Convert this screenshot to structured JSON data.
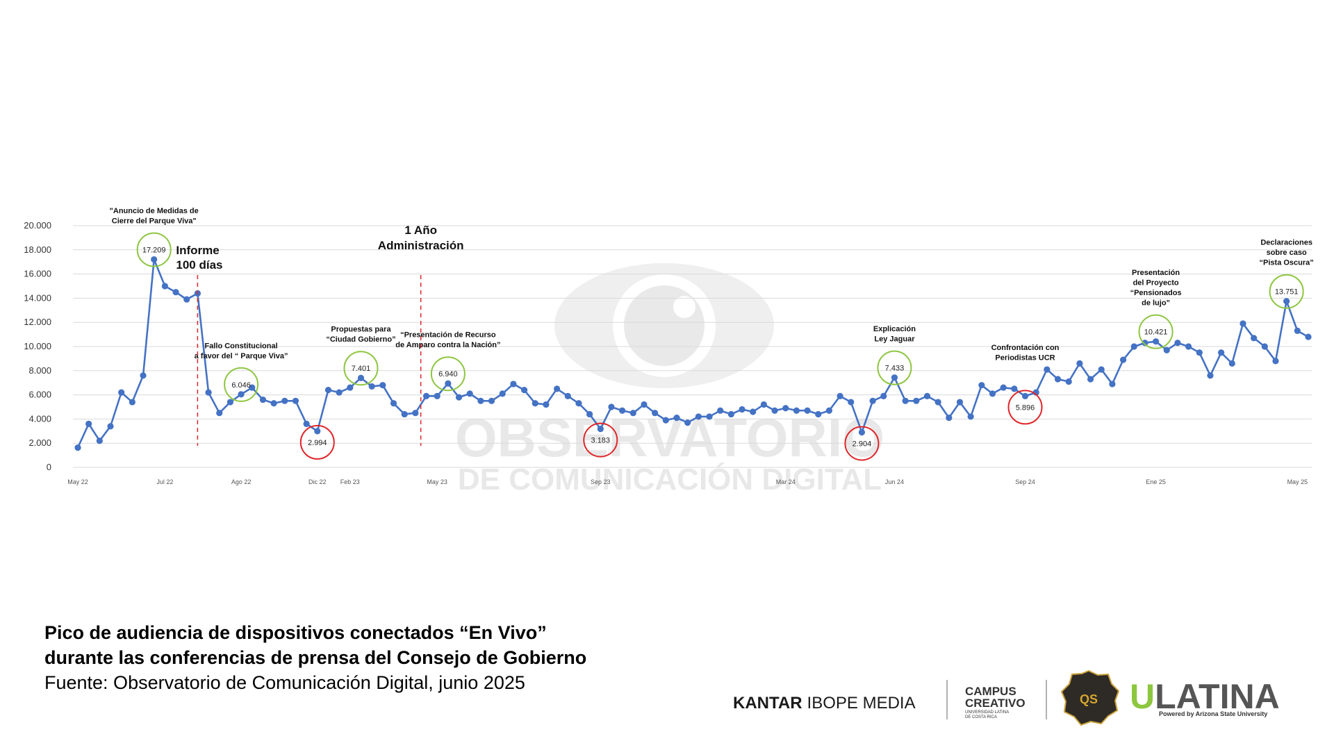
{
  "chart_data": {
    "type": "line",
    "color": "#4472c4",
    "grid": true,
    "ylim": [
      0,
      20000
    ],
    "yticks": [
      0,
      {
        "value": 2000,
        "label": "2.000"
      },
      {
        "value": 4000,
        "label": "4.000"
      },
      {
        "value": 6000,
        "label": "6.000"
      },
      {
        "value": 8000,
        "label": "8.000"
      },
      {
        "value": 10000,
        "label": "10.000"
      },
      {
        "value": 12000,
        "label": "12.000"
      },
      {
        "value": 14000,
        "label": "14.000"
      },
      {
        "value": 16000,
        "label": "16.000"
      },
      {
        "value": 18000,
        "label": "18.000"
      },
      {
        "value": 20000,
        "label": "20.000"
      }
    ],
    "categories": [
      "May 22",
      null,
      null,
      null,
      null,
      null,
      null,
      null,
      "Jul 22",
      null,
      null,
      null,
      null,
      null,
      null,
      "Ago 22",
      null,
      null,
      null,
      null,
      null,
      null,
      "Dic 22",
      null,
      null,
      "Feb 23",
      null,
      null,
      null,
      null,
      null,
      null,
      null,
      "May 23",
      null,
      null,
      null,
      null,
      null,
      null,
      null,
      null,
      null,
      null,
      null,
      null,
      null,
      null,
      "Sep 23",
      null,
      null,
      null,
      null,
      null,
      null,
      null,
      null,
      null,
      null,
      null,
      null,
      null,
      null,
      null,
      null,
      "Mar 24",
      null,
      null,
      null,
      null,
      null,
      null,
      null,
      null,
      null,
      "Jun 24",
      null,
      null,
      null,
      null,
      null,
      null,
      null,
      null,
      null,
      null,
      null,
      "Sep 24",
      null,
      null,
      null,
      null,
      null,
      null,
      null,
      null,
      null,
      null,
      null,
      "Ene 25",
      null,
      null,
      null,
      null,
      null,
      null,
      null,
      null,
      null,
      null,
      null,
      null,
      "May 25",
      null
    ],
    "values": [
      1630,
      3600,
      2200,
      3400,
      6200,
      5400,
      7600,
      17209,
      15000,
      14500,
      13900,
      14400,
      6200,
      4500,
      5400,
      6046,
      6600,
      5600,
      5300,
      5500,
      5500,
      3600,
      2994,
      6400,
      6200,
      6600,
      7401,
      6700,
      6800,
      5300,
      4400,
      4500,
      5900,
      5900,
      6940,
      5800,
      6100,
      5500,
      5500,
      6100,
      6900,
      6400,
      5300,
      5200,
      6500,
      5900,
      5300,
      4400,
      3183,
      5000,
      4700,
      4500,
      5200,
      4500,
      3900,
      4100,
      3700,
      4200,
      4200,
      4700,
      4400,
      4800,
      4600,
      5200,
      4700,
      4900,
      4700,
      4700,
      4400,
      4700,
      5900,
      5400,
      2904,
      5500,
      5900,
      7433,
      5500,
      5500,
      5900,
      5400,
      4100,
      5400,
      4200,
      6800,
      6100,
      6600,
      6500,
      5896,
      6200,
      8100,
      7300,
      7100,
      8600,
      7300,
      8100,
      6900,
      8900,
      10000,
      10300,
      10421,
      9700,
      10300,
      10000,
      9500,
      7600,
      9500,
      8600,
      11900,
      10700,
      10000,
      8800,
      13751,
      11300,
      10800
    ],
    "value_labels": [
      null,
      null,
      null,
      null,
      null,
      null,
      null,
      "17.209",
      null,
      null,
      null,
      null,
      null,
      null,
      null,
      "6.046",
      null,
      null,
      null,
      null,
      null,
      null,
      "2.994",
      null,
      null,
      null,
      "7.401",
      null,
      null,
      null,
      null,
      null,
      null,
      null,
      "6.940",
      null,
      null,
      null,
      null,
      null,
      null,
      null,
      null,
      null,
      null,
      null,
      null,
      null,
      "3.183",
      null,
      null,
      null,
      null,
      null,
      null,
      null,
      null,
      null,
      null,
      null,
      null,
      null,
      null,
      null,
      null,
      null,
      null,
      null,
      null,
      null,
      null,
      null,
      "2.904",
      null,
      null,
      "7.433",
      null,
      null,
      null,
      null,
      null,
      null,
      null,
      null,
      null,
      null,
      null,
      "5.896",
      null,
      null,
      null,
      null,
      null,
      null,
      null,
      null,
      null,
      null,
      null,
      "10.421",
      null,
      null,
      null,
      null,
      null,
      null,
      null,
      null,
      null,
      null,
      null,
      "13.751",
      null,
      null
    ],
    "peak_circle_color": "#8dc63f",
    "low_circle_color": "#e0262a",
    "events": [
      {
        "lines": [
          "\"Anuncio de Medidas de",
          "Cierre del Parque Viva\""
        ]
      },
      {
        "lines": [
          "Fallo Constitucional",
          "a favor del “ Parque Viva”"
        ]
      },
      {
        "lines": [
          "Propuestas para",
          "“Ciudad Gobierno”"
        ]
      },
      {
        "lines": [
          "“Presentación de Recurso",
          "de Amparo contra la Nación”"
        ]
      },
      {
        "lines": [
          "Explicación",
          "Ley Jaguar"
        ]
      },
      {
        "lines": [
          "Confrontación con",
          "Periodistas UCR"
        ]
      },
      {
        "lines": [
          "Presentación",
          "del Proyecto",
          "“Pensionados",
          "de lujo”"
        ]
      },
      {
        "lines": [
          "Declaraciones",
          "sobre caso",
          "“Pista Oscura”"
        ]
      }
    ],
    "milestones": [
      {
        "lines": [
          "Informe",
          "100 días"
        ]
      },
      {
        "lines": [
          "1 Año",
          "Administración"
        ]
      }
    ]
  },
  "watermark": [
    "OBSERVATORIO",
    "DE COMUNICACIÓN DIGITAL"
  ],
  "footer": {
    "title": [
      "Pico de audiencia de dispositivos conectados “En Vivo”",
      "durante las conferencias de prensa del Consejo de Gobierno"
    ],
    "source": "Fuente: Observatorio de Comunicación Digital, junio 2025",
    "kantar": [
      "KANTAR",
      "IBOPE MEDIA"
    ],
    "campus": [
      "CAMPUS",
      "CREATIVO",
      "UNIVERSIDAD LATINA",
      "DE COSTA RICA"
    ],
    "badge": "QS",
    "ulatina": [
      "U",
      "LATINA"
    ],
    "powered": "Powered by Arizona State University"
  }
}
